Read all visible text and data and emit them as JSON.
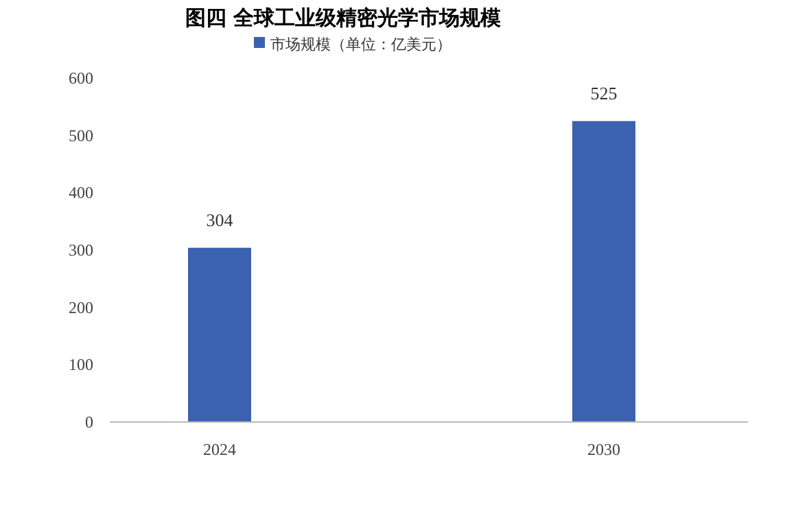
{
  "chart_data": {
    "type": "bar",
    "title": "图四 全球工业级精密光学市场规模",
    "categories": [
      "2024",
      "2030"
    ],
    "series": [
      {
        "name": "市场规模（单位：亿美元）",
        "color": "#3a62ae",
        "values": [
          304,
          525
        ]
      }
    ],
    "ylim": [
      0,
      600
    ],
    "yticks": [
      0,
      100,
      200,
      300,
      400,
      500,
      600
    ],
    "data_labels": true,
    "legend": "top",
    "grid": false
  }
}
